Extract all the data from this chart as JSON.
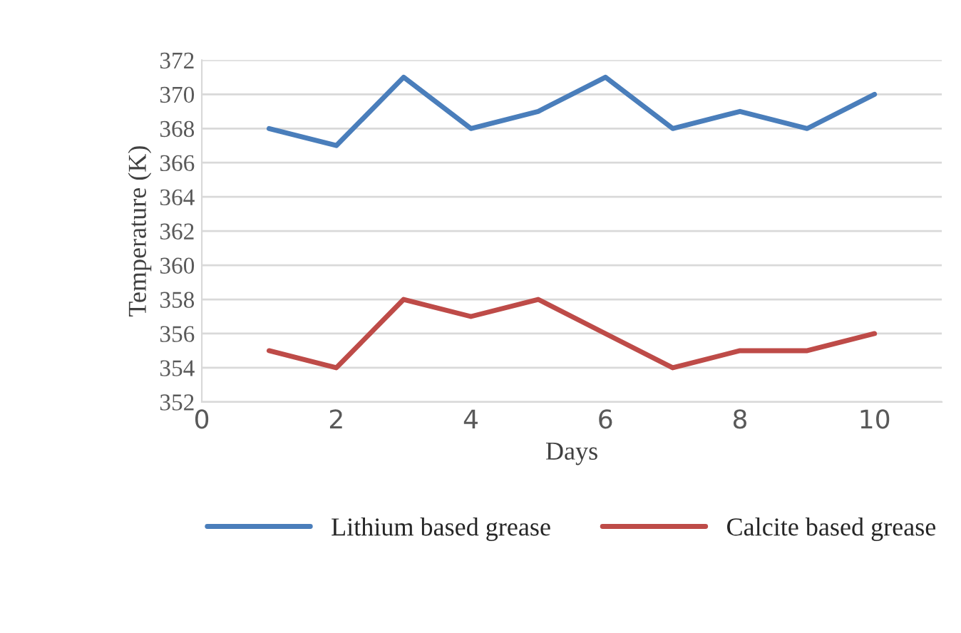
{
  "chart_data": {
    "type": "line",
    "xlabel": "Days",
    "ylabel": "Temperature (K)",
    "x": [
      1,
      2,
      3,
      4,
      5,
      6,
      7,
      8,
      9,
      10
    ],
    "series": [
      {
        "name": "Lithium based grease",
        "color": "#4a7ebb",
        "values": [
          368,
          367,
          371,
          368,
          369,
          371,
          368,
          369,
          368,
          370
        ]
      },
      {
        "name": "Calcite based grease",
        "color": "#be4b48",
        "values": [
          355,
          354,
          358,
          357,
          358,
          356,
          354,
          355,
          355,
          356
        ]
      }
    ],
    "xlim": [
      0,
      11
    ],
    "xticks": [
      0,
      2,
      4,
      6,
      8,
      10
    ],
    "ylim": [
      352,
      372
    ],
    "yticks": [
      352,
      354,
      356,
      358,
      360,
      362,
      364,
      366,
      368,
      370,
      372
    ],
    "grid": "y",
    "legend": "bottom",
    "marker": "none",
    "line_style": "solid"
  }
}
